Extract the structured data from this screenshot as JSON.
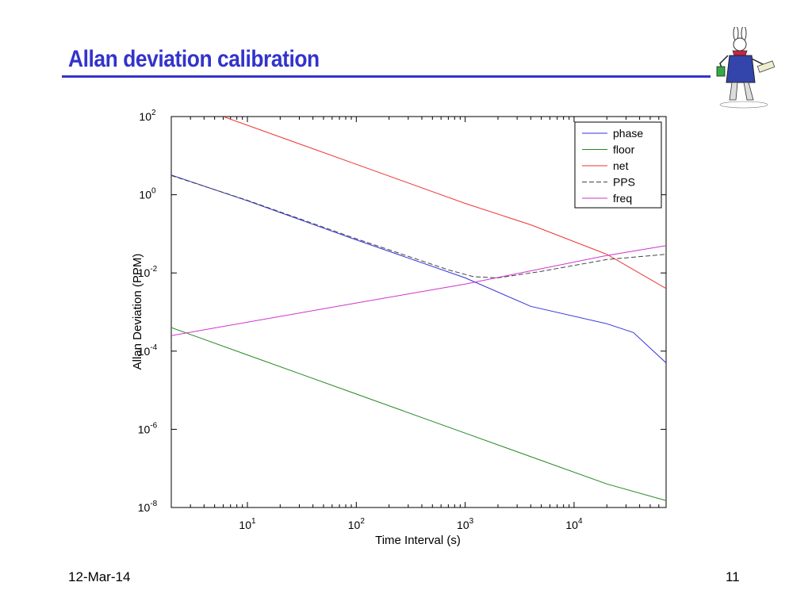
{
  "slide": {
    "title": "Allan deviation calibration",
    "date": "12-Mar-14",
    "page_number": "11",
    "logo_icon": "white-rabbit-icon",
    "title_color": "#3333cc"
  },
  "chart_data": {
    "type": "line",
    "xlabel": "Time Interval (s)",
    "ylabel": "Allan Deviation (PPM)",
    "xscale": "log",
    "yscale": "log",
    "xlim": [
      2,
      70000
    ],
    "ylim": [
      1e-08,
      100
    ],
    "x_ticks": [
      {
        "value": 10,
        "base": "10",
        "exp": "1"
      },
      {
        "value": 100,
        "base": "10",
        "exp": "2"
      },
      {
        "value": 1000,
        "base": "10",
        "exp": "3"
      },
      {
        "value": 10000,
        "base": "10",
        "exp": "4"
      }
    ],
    "y_ticks": [
      {
        "value": 1e-08,
        "base": "10",
        "exp": "-8"
      },
      {
        "value": 1e-06,
        "base": "10",
        "exp": "-6"
      },
      {
        "value": 0.0001,
        "base": "10",
        "exp": "-4"
      },
      {
        "value": 0.01,
        "base": "10",
        "exp": "-2"
      },
      {
        "value": 1,
        "base": "10",
        "exp": "0"
      },
      {
        "value": 100,
        "base": "10",
        "exp": "2"
      }
    ],
    "grid": false,
    "legend_position": "top-right",
    "series": [
      {
        "name": "phase",
        "color": "#3333dd",
        "dash": "solid",
        "points": [
          [
            2,
            3.2
          ],
          [
            10,
            0.7
          ],
          [
            100,
            0.07
          ],
          [
            1000,
            0.0075
          ],
          [
            4000,
            0.0014
          ],
          [
            20000,
            0.0005
          ],
          [
            35000,
            0.0003
          ],
          [
            70000,
            5e-05
          ]
        ]
      },
      {
        "name": "floor",
        "color": "#228822",
        "dash": "solid",
        "points": [
          [
            2,
            0.0004
          ],
          [
            10,
            8e-05
          ],
          [
            100,
            8e-06
          ],
          [
            1000,
            8e-07
          ],
          [
            4000,
            2e-07
          ],
          [
            20000,
            4e-08
          ],
          [
            70000,
            1.5e-08
          ]
        ]
      },
      {
        "name": "net",
        "color": "#ee3333",
        "dash": "solid",
        "points": [
          [
            6,
            100
          ],
          [
            100,
            6
          ],
          [
            1000,
            0.6
          ],
          [
            4000,
            0.17
          ],
          [
            20000,
            0.03
          ],
          [
            70000,
            0.004
          ]
        ]
      },
      {
        "name": "PPS",
        "color": "#444444",
        "dash": "dashed",
        "points": [
          [
            2,
            3.1
          ],
          [
            10,
            0.72
          ],
          [
            100,
            0.075
          ],
          [
            700,
            0.012
          ],
          [
            1200,
            0.008
          ],
          [
            2000,
            0.0075
          ],
          [
            5000,
            0.011
          ],
          [
            20000,
            0.022
          ],
          [
            70000,
            0.03
          ]
        ]
      },
      {
        "name": "freq",
        "color": "#cc33cc",
        "dash": "solid",
        "points": [
          [
            2,
            0.00025
          ],
          [
            100,
            0.0017
          ],
          [
            1000,
            0.0052
          ],
          [
            20000,
            0.028
          ],
          [
            70000,
            0.05
          ]
        ]
      }
    ]
  }
}
